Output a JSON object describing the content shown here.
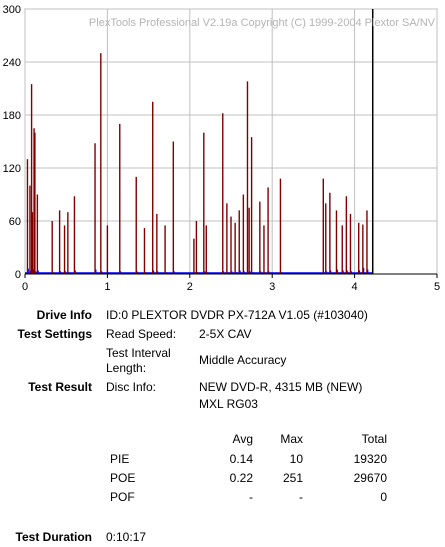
{
  "watermark": "PlexTools Professional V2.19a Copyright (C) 1999-2004 Plextor SA/NV",
  "colors": {
    "poe": "#800000",
    "pie": "#0000ff",
    "grid": "#c0c0c0",
    "end_marker": "#000000",
    "plot_bg": "#ffffff"
  },
  "chart_data": {
    "type": "bar",
    "xlim": [
      0,
      5
    ],
    "ylim": [
      0,
      300
    ],
    "x_ticks": [
      "0",
      "1",
      "2",
      "3",
      "4",
      "5"
    ],
    "y_ticks": [
      "0",
      "60",
      "120",
      "180",
      "240",
      "300"
    ],
    "grid": true,
    "end_of_data_x": 4.22,
    "series": [
      {
        "name": "POE",
        "x": [
          0.03,
          0.06,
          0.08,
          0.09,
          0.11,
          0.12,
          0.15,
          0.33,
          0.42,
          0.48,
          0.52,
          0.6,
          0.85,
          0.92,
          1.0,
          1.15,
          1.35,
          1.45,
          1.55,
          1.6,
          1.7,
          1.8,
          2.05,
          2.08,
          2.17,
          2.2,
          2.4,
          2.45,
          2.5,
          2.55,
          2.6,
          2.65,
          2.7,
          2.72,
          2.75,
          2.85,
          2.9,
          2.95,
          3.1,
          3.62,
          3.65,
          3.7,
          3.78,
          3.85,
          3.9,
          3.95,
          4.05,
          4.1,
          4.15
        ],
        "values": [
          130,
          100,
          215,
          70,
          165,
          160,
          90,
          60,
          72,
          55,
          70,
          88,
          148,
          250,
          55,
          170,
          110,
          52,
          195,
          68,
          55,
          150,
          40,
          60,
          160,
          55,
          182,
          80,
          65,
          58,
          72,
          90,
          218,
          75,
          155,
          82,
          55,
          98,
          108,
          108,
          80,
          92,
          72,
          55,
          88,
          68,
          58,
          56,
          72
        ]
      },
      {
        "name": "PIE",
        "values": [
          6,
          4,
          3,
          5,
          2,
          3,
          4,
          2,
          3,
          3,
          2,
          4,
          5,
          3,
          2,
          3,
          3,
          2,
          4,
          3,
          2,
          3,
          2,
          2,
          3,
          2,
          3,
          2,
          3,
          2,
          4,
          3,
          2,
          3,
          2,
          3,
          2,
          3,
          2,
          2,
          3,
          4,
          5,
          4,
          4,
          3,
          4,
          7,
          5
        ]
      }
    ]
  },
  "drive_info": {
    "label": "Drive Info",
    "value": "ID:0 PLEXTOR DVDR PX-712A V1.05 (#103040)"
  },
  "test_settings": {
    "label": "Test Settings",
    "read_speed_label": "Read Speed:",
    "read_speed_value": "2-5X CAV",
    "interval_label_1": "Test Interval",
    "interval_label_2": "Length:",
    "interval_value": "Middle Accuracy"
  },
  "test_result": {
    "label": "Test Result",
    "disc_info_label": "Disc Info:",
    "disc_info_line1": "NEW DVD-R, 4315 MB (NEW)",
    "disc_info_line2": "MXL RG03"
  },
  "stats": {
    "headers": {
      "avg": "Avg",
      "max": "Max",
      "total": "Total"
    },
    "rows": [
      {
        "name": "PIE",
        "avg": "0.14",
        "max": "10",
        "total": "19320"
      },
      {
        "name": "POE",
        "avg": "0.22",
        "max": "251",
        "total": "29670"
      },
      {
        "name": "POF",
        "avg": "-",
        "max": "-",
        "total": "0"
      }
    ]
  },
  "test_duration": {
    "label": "Test Duration",
    "value": "0:10:17"
  }
}
